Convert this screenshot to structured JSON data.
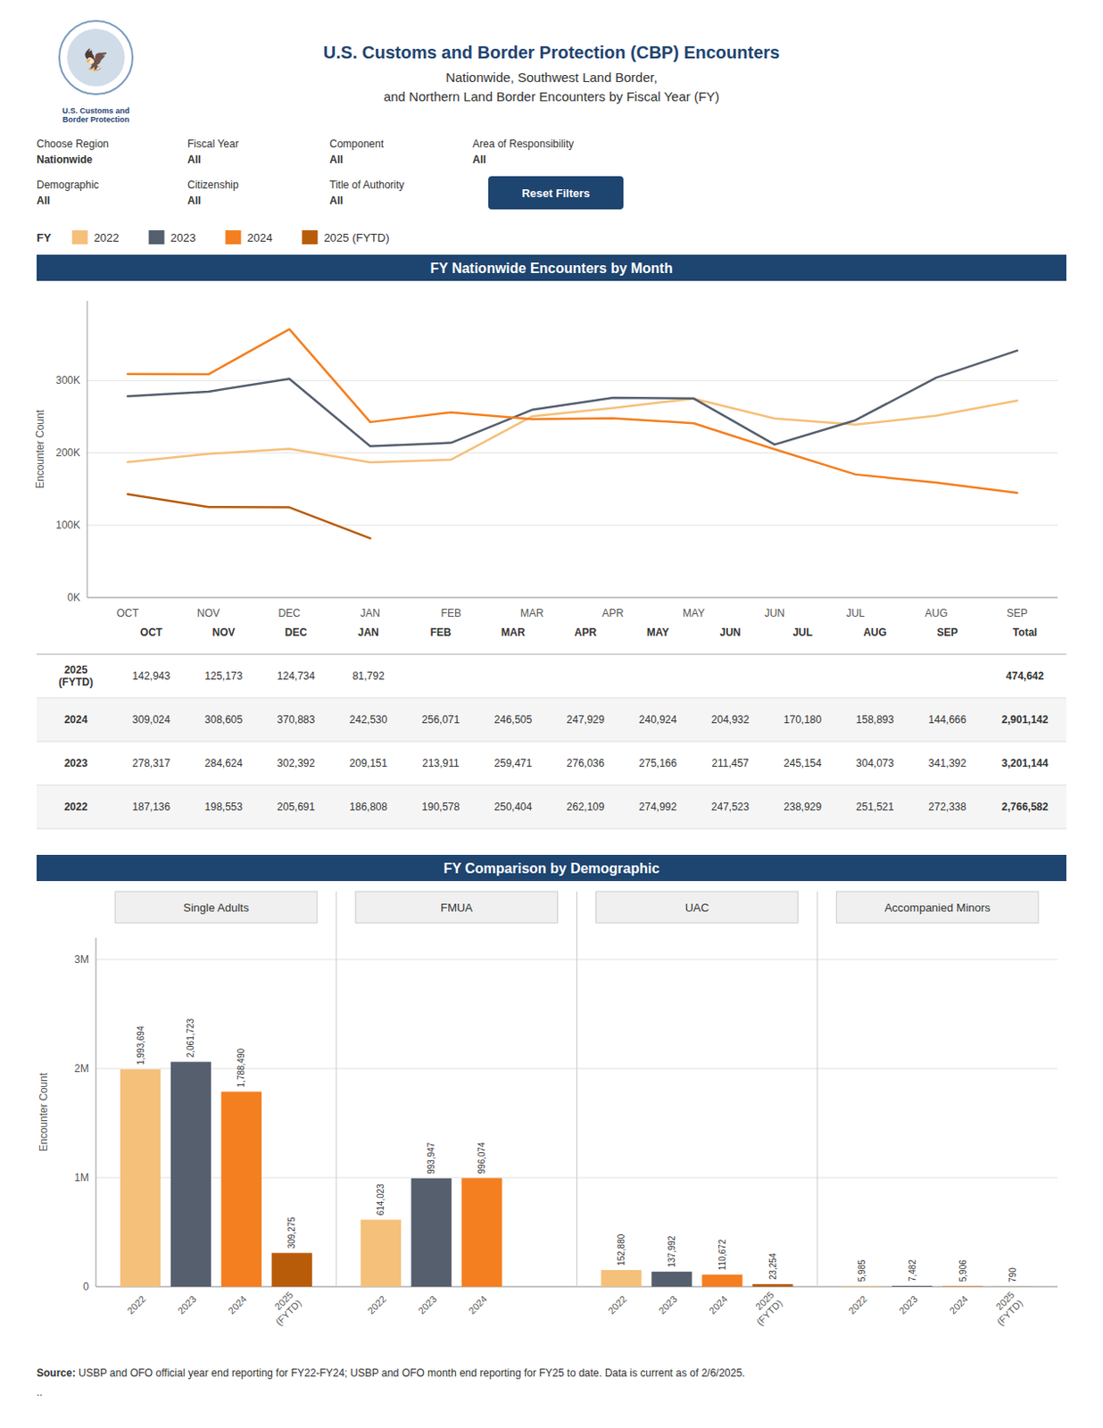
{
  "title": "U.S. Customs and Border Protection (CBP) Encounters",
  "subtitle": [
    "Nationwide, Southwest Land Border,",
    "and Northern Land Border Encounters by Fiscal Year (FY)"
  ],
  "annotations": [
    "🦅",
    "U.S. Customs and\nBorder Protection",
    "Choose Region",
    "Nationwide",
    "Fiscal Year",
    "All",
    "Component",
    "All",
    "Area of Responsibility",
    "All",
    "Demographic",
    "All",
    "Citizenship",
    "All",
    "Title of Authority",
    "All",
    "Reset Filters",
    "FY",
    "Source:",
    " USBP and OFO official year end reporting for FY22-FY24; USBP and OFO month end reporting for FY25 to date. Data is current as of 2/6/2025.",
    ".."
  ],
  "chart_data": [
    {
      "type": "line",
      "title": "FY Nationwide Encounters by Month",
      "categories": [
        "OCT",
        "NOV",
        "DEC",
        "JAN",
        "FEB",
        "MAR",
        "APR",
        "MAY",
        "JUN",
        "JUL",
        "AUG",
        "SEP"
      ],
      "series": [
        {
          "name": "2022",
          "color": "#f5c07a",
          "values": [
            187136,
            198553,
            205691,
            186808,
            190578,
            250404,
            262109,
            274992,
            247523,
            238929,
            251521,
            272338
          ]
        },
        {
          "name": "2023",
          "color": "#555f6e",
          "values": [
            278317,
            284624,
            302392,
            209151,
            213911,
            259471,
            276036,
            275166,
            211457,
            245154,
            304073,
            341392
          ]
        },
        {
          "name": "2024",
          "color": "#f47f20",
          "values": [
            309024,
            308605,
            370883,
            242530,
            256071,
            246505,
            247929,
            240924,
            204932,
            170180,
            158893,
            144666
          ]
        },
        {
          "name": "2025 (FYTD)",
          "color": "#b85c0a",
          "values": [
            142943,
            125173,
            124734,
            81792,
            null,
            null,
            null,
            null,
            null,
            null,
            null,
            null
          ]
        }
      ],
      "ylim": [
        0,
        410000
      ],
      "yticks": [
        {
          "value": 0,
          "label": "0K"
        },
        {
          "value": 100000,
          "label": "100K"
        },
        {
          "value": 200000,
          "label": "200K"
        },
        {
          "value": 300000,
          "label": "300K"
        }
      ],
      "y_label": "Encounter Count",
      "grid": true,
      "legend": "top"
    },
    {
      "type": "table",
      "columns": [
        "OCT",
        "NOV",
        "DEC",
        "JAN",
        "FEB",
        "MAR",
        "APR",
        "MAY",
        "JUN",
        "JUL",
        "AUG",
        "SEP",
        "Total"
      ],
      "rows": [
        {
          "label": "2025\n(FYTD)",
          "values": [
            142943,
            125173,
            124734,
            81792,
            null,
            null,
            null,
            null,
            null,
            null,
            null,
            null
          ],
          "value_labels": [
            "142,943",
            "125,173",
            "124,734",
            "81,792",
            null,
            null,
            null,
            null,
            null,
            null,
            null,
            null
          ],
          "total": 474642,
          "total_label": "474,642"
        },
        {
          "label": "2024",
          "values": [
            309024,
            308605,
            370883,
            242530,
            256071,
            246505,
            247929,
            240924,
            204932,
            170180,
            158893,
            144666
          ],
          "value_labels": [
            "309,024",
            "308,605",
            "370,883",
            "242,530",
            "256,071",
            "246,505",
            "247,929",
            "240,924",
            "204,932",
            "170,180",
            "158,893",
            "144,666"
          ],
          "total": 2901142,
          "total_label": "2,901,142"
        },
        {
          "label": "2023",
          "values": [
            278317,
            284624,
            302392,
            209151,
            213911,
            259471,
            276036,
            275166,
            211457,
            245154,
            304073,
            341392
          ],
          "value_labels": [
            "278,317",
            "284,624",
            "302,392",
            "209,151",
            "213,911",
            "259,471",
            "276,036",
            "275,166",
            "211,457",
            "245,154",
            "304,073",
            "341,392"
          ],
          "total": 3201144,
          "total_label": "3,201,144"
        },
        {
          "label": "2022",
          "values": [
            187136,
            198553,
            205691,
            186808,
            190578,
            250404,
            262109,
            274992,
            247523,
            238929,
            251521,
            272338
          ],
          "value_labels": [
            "187,136",
            "198,553",
            "205,691",
            "186,808",
            "190,578",
            "250,404",
            "262,109",
            "274,992",
            "247,523",
            "238,929",
            "251,521",
            "272,338"
          ],
          "total": 2766582,
          "total_label": "2,766,582"
        }
      ]
    },
    {
      "type": "bar",
      "title": "FY Comparison by Demographic",
      "categories": [
        "Single Adults",
        "FMUA",
        "UAC",
        "Accompanied Minors"
      ],
      "series": [
        {
          "name": "2022",
          "color": "#f5c07a",
          "values": [
            1993694,
            614023,
            152880,
            5985
          ],
          "value_labels": [
            "1,993,694",
            "614,023",
            "152,880",
            "5,985"
          ]
        },
        {
          "name": "2023",
          "color": "#555f6e",
          "values": [
            2061723,
            993947,
            137992,
            7482
          ],
          "value_labels": [
            "2,061,723",
            "993,947",
            "137,992",
            "7,482"
          ]
        },
        {
          "name": "2024",
          "color": "#f47f20",
          "values": [
            1788490,
            996074,
            110672,
            5906
          ],
          "value_labels": [
            "1,788,490",
            "996,074",
            "110,672",
            "5,906"
          ]
        },
        {
          "name": "2025\n(FYTD)",
          "color": "#b85c0a",
          "values": [
            309275,
            null,
            23254,
            790
          ],
          "value_labels": [
            "309,275",
            null,
            "23,254",
            "790"
          ]
        }
      ],
      "ylim": [
        0,
        3200000
      ],
      "yticks": [
        0,
        {
          "value": 1000000,
          "label": "1M"
        },
        {
          "value": 2000000,
          "label": "2M"
        },
        {
          "value": 3000000,
          "label": "3M"
        }
      ],
      "y_label": "Encounter Count",
      "grid": true,
      "data_labels": true
    }
  ]
}
